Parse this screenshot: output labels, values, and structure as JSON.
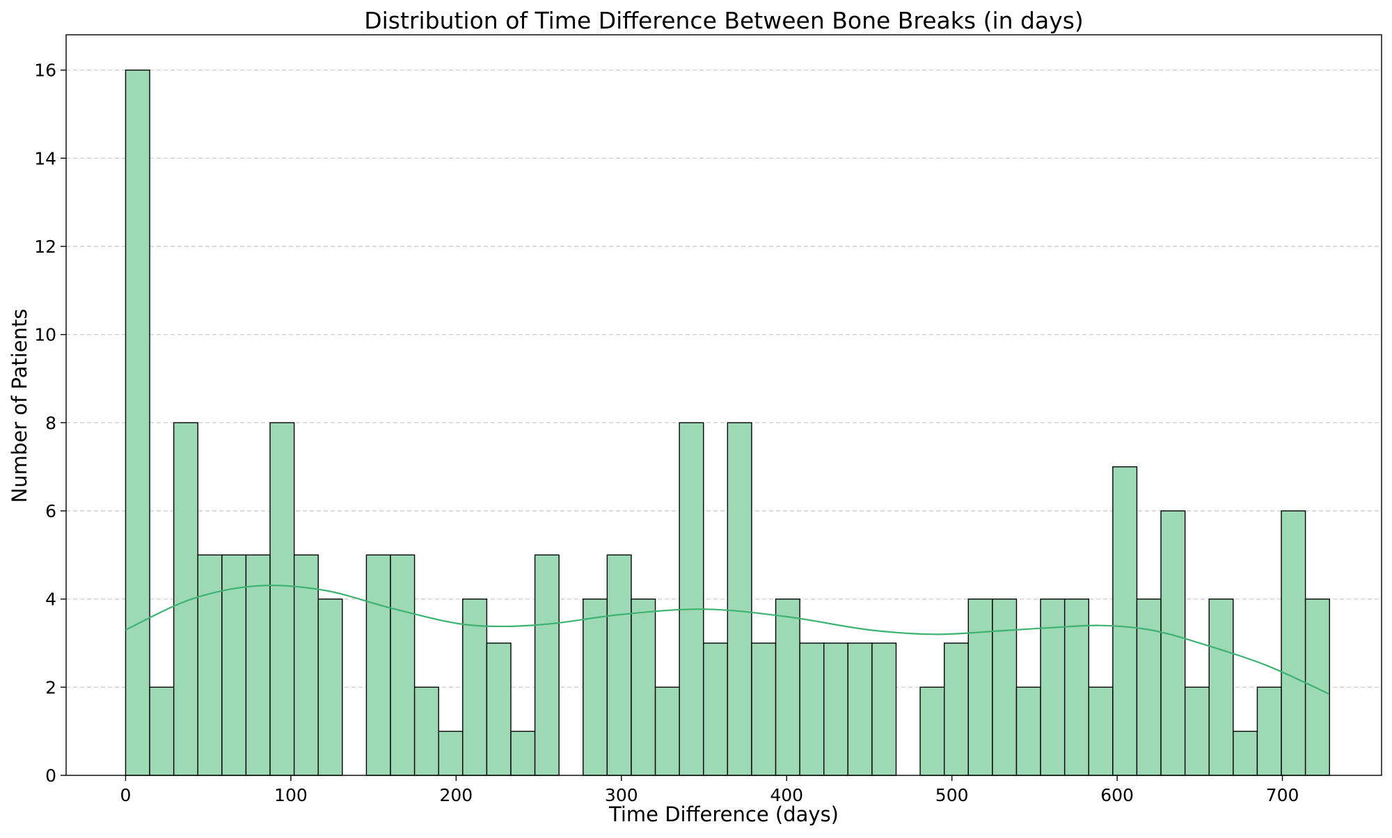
{
  "chart_data": {
    "type": "bar",
    "title": "Distribution of Time Difference Between Bone Breaks (in days)",
    "xlabel": "Time Difference (days)",
    "ylabel": "Number of Patients",
    "xlim": [
      -36,
      760
    ],
    "ylim": [
      0,
      16.8
    ],
    "x_ticks": [
      0,
      100,
      200,
      300,
      400,
      500,
      600,
      700
    ],
    "y_ticks": [
      0,
      2,
      4,
      6,
      8,
      10,
      12,
      14,
      16
    ],
    "bin_start": 0,
    "bin_width": 14.57,
    "bin_counts": [
      16,
      2,
      8,
      5,
      5,
      5,
      8,
      5,
      4,
      0,
      5,
      5,
      2,
      1,
      4,
      3,
      1,
      5,
      0,
      4,
      5,
      4,
      2,
      8,
      3,
      8,
      3,
      4,
      3,
      3,
      3,
      3,
      0,
      2,
      3,
      4,
      4,
      2,
      4,
      4,
      2,
      7,
      4,
      6,
      2,
      4,
      1,
      2,
      6,
      4
    ],
    "kde_curve": {
      "x": [
        0,
        40,
        80,
        120,
        160,
        200,
        230,
        260,
        300,
        350,
        400,
        450,
        490,
        530,
        560,
        590,
        620,
        650,
        690,
        728
      ],
      "y": [
        3.3,
        4.0,
        4.3,
        4.2,
        3.8,
        3.45,
        3.38,
        3.45,
        3.65,
        3.77,
        3.6,
        3.3,
        3.2,
        3.28,
        3.35,
        3.4,
        3.3,
        3.0,
        2.5,
        1.85
      ]
    },
    "grid": "y",
    "bar_color": "#9dd9b5",
    "kde_color": "#3cb371"
  }
}
